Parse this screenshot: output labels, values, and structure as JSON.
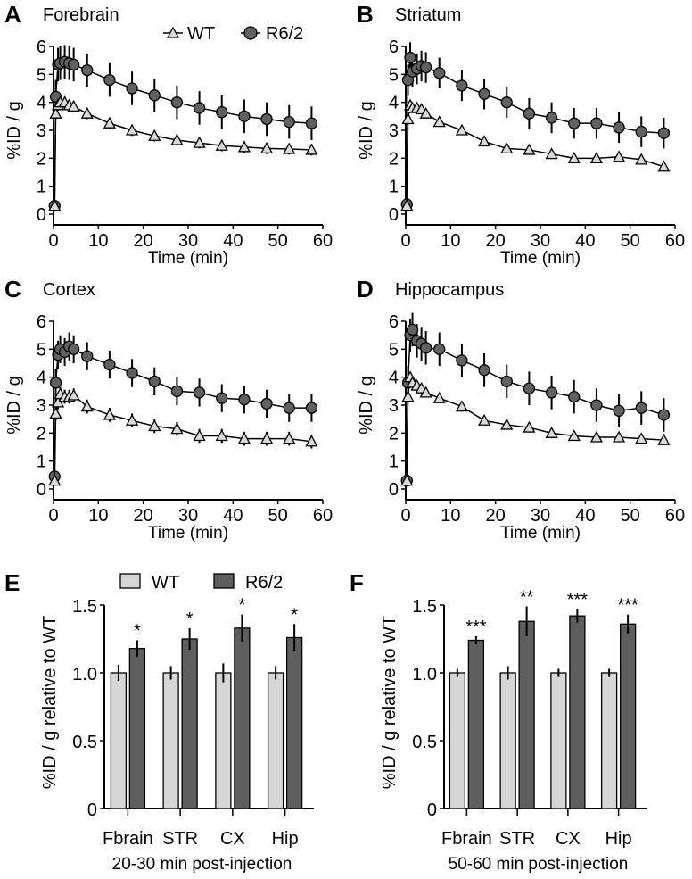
{
  "legend_lines": {
    "wt": "WT",
    "r62": "R6/2"
  },
  "legend_bars": {
    "wt": "WT",
    "r62": "R6/2"
  },
  "colors": {
    "wt": "#d9d9d9",
    "r62": "#606060",
    "bar_wt": "#d6d6d6",
    "bar_r62": "#5e5e5e"
  },
  "chart_data": [
    {
      "type": "line",
      "panel": "A",
      "title": "Forebrain",
      "xlabel": "Time (min)",
      "ylabel": "%ID / g",
      "xlim": [
        0,
        60
      ],
      "ylim": [
        0,
        6
      ],
      "xticks": [
        "0",
        "10",
        "20",
        "30",
        "40",
        "50",
        "60"
      ],
      "yticks": [
        "0",
        "1",
        "2",
        "3",
        "4",
        "5",
        "6"
      ],
      "x": [
        0.25,
        0.5,
        1,
        1.5,
        2.5,
        3.5,
        4.5,
        7.5,
        12.5,
        17.5,
        22.5,
        27.5,
        32.5,
        37.5,
        42.5,
        47.5,
        52.5,
        57.5
      ],
      "series": [
        {
          "name": "WT",
          "values": [
            0.3,
            3.6,
            3.9,
            4.0,
            4.0,
            3.9,
            3.85,
            3.6,
            3.25,
            3.0,
            2.8,
            2.65,
            2.55,
            2.45,
            2.4,
            2.35,
            2.33,
            2.3
          ],
          "error": 0.2
        },
        {
          "name": "R6/2",
          "values": [
            0.3,
            4.2,
            5.35,
            5.4,
            5.45,
            5.4,
            5.35,
            5.15,
            4.8,
            4.5,
            4.25,
            4.0,
            3.8,
            3.65,
            3.5,
            3.4,
            3.3,
            3.25
          ],
          "error": 0.6
        }
      ]
    },
    {
      "type": "line",
      "panel": "B",
      "title": "Striatum",
      "xlabel": "Time (min)",
      "ylabel": "%ID / g",
      "xlim": [
        0,
        60
      ],
      "ylim": [
        0,
        6
      ],
      "xticks": [
        "0",
        "10",
        "20",
        "30",
        "40",
        "50",
        "60"
      ],
      "yticks": [
        "0",
        "1",
        "2",
        "3",
        "4",
        "5",
        "6"
      ],
      "x": [
        0.25,
        0.5,
        1,
        1.5,
        2.5,
        3.5,
        4.5,
        7.5,
        12.5,
        17.5,
        22.5,
        27.5,
        32.5,
        37.5,
        42.5,
        47.5,
        52.5,
        57.5
      ],
      "series": [
        {
          "name": "WT",
          "values": [
            0.3,
            3.4,
            3.9,
            3.8,
            3.8,
            3.75,
            3.6,
            3.3,
            3.0,
            2.6,
            2.35,
            2.3,
            2.15,
            2.0,
            2.0,
            2.05,
            1.95,
            1.7
          ],
          "error": 0.15
        },
        {
          "name": "R6/2",
          "values": [
            0.35,
            4.8,
            5.6,
            5.1,
            5.2,
            5.3,
            5.25,
            5.05,
            4.6,
            4.3,
            4.0,
            3.6,
            3.45,
            3.25,
            3.25,
            3.1,
            2.95,
            2.9
          ],
          "error": 0.55
        }
      ]
    },
    {
      "type": "line",
      "panel": "C",
      "title": "Cortex",
      "xlabel": "Time (min)",
      "ylabel": "%ID / g",
      "xlim": [
        0,
        60
      ],
      "ylim": [
        0,
        6
      ],
      "xticks": [
        "0",
        "10",
        "20",
        "30",
        "40",
        "50",
        "60"
      ],
      "yticks": [
        "0",
        "1",
        "2",
        "3",
        "4",
        "5",
        "6"
      ],
      "x": [
        0.25,
        0.5,
        1,
        1.5,
        2.5,
        3.5,
        4.5,
        7.5,
        12.5,
        17.5,
        22.5,
        27.5,
        32.5,
        37.5,
        42.5,
        47.5,
        52.5,
        57.5
      ],
      "series": [
        {
          "name": "WT",
          "values": [
            0.3,
            2.7,
            3.1,
            3.4,
            3.3,
            3.3,
            3.35,
            2.95,
            2.65,
            2.45,
            2.25,
            2.15,
            1.9,
            1.9,
            1.8,
            1.8,
            1.8,
            1.7
          ],
          "error": 0.25
        },
        {
          "name": "R6/2",
          "values": [
            0.45,
            3.8,
            4.8,
            5.0,
            4.9,
            5.1,
            5.0,
            4.75,
            4.45,
            4.15,
            3.85,
            3.5,
            3.45,
            3.25,
            3.2,
            3.05,
            2.9,
            2.9
          ],
          "error": 0.5
        }
      ]
    },
    {
      "type": "line",
      "panel": "D",
      "title": "Hippocampus",
      "xlabel": "Time (min)",
      "ylabel": "%ID / g",
      "xlim": [
        0,
        60
      ],
      "ylim": [
        0,
        6
      ],
      "xticks": [
        "0",
        "10",
        "20",
        "30",
        "40",
        "50",
        "60"
      ],
      "yticks": [
        "0",
        "1",
        "2",
        "3",
        "4",
        "5",
        "6"
      ],
      "x": [
        0.25,
        0.5,
        1,
        1.5,
        2.5,
        3.5,
        4.5,
        7.5,
        12.5,
        17.5,
        22.5,
        27.5,
        32.5,
        37.5,
        42.5,
        47.5,
        52.5,
        57.5
      ],
      "series": [
        {
          "name": "WT",
          "values": [
            0.3,
            3.3,
            4.0,
            3.8,
            3.7,
            3.6,
            3.45,
            3.25,
            2.95,
            2.45,
            2.3,
            2.2,
            2.0,
            1.9,
            1.85,
            1.85,
            1.8,
            1.75
          ],
          "error": 0.15
        },
        {
          "name": "R6/2",
          "values": [
            0.3,
            3.8,
            5.5,
            5.7,
            5.3,
            5.2,
            5.05,
            5.0,
            4.6,
            4.25,
            3.85,
            3.6,
            3.45,
            3.3,
            3.0,
            2.8,
            2.9,
            2.65
          ],
          "error": 0.6
        }
      ]
    },
    {
      "type": "bar",
      "panel": "E",
      "xlabel": "20-30 min post-injection",
      "ylabel": "%ID / g relative to WT",
      "ylim": [
        0,
        1.5
      ],
      "yticks": [
        "0",
        "0.5",
        "1.0",
        "1.5"
      ],
      "categories": [
        "Fbrain",
        "STR",
        "CX",
        "Hip"
      ],
      "series": [
        {
          "name": "WT",
          "values": [
            1.0,
            1.0,
            1.0,
            1.0
          ],
          "errors": [
            0.06,
            0.05,
            0.07,
            0.05
          ]
        },
        {
          "name": "R6/2",
          "values": [
            1.18,
            1.25,
            1.33,
            1.26
          ],
          "errors": [
            0.06,
            0.08,
            0.1,
            0.1
          ]
        }
      ],
      "annotations": [
        "*",
        "*",
        "*",
        "*"
      ]
    },
    {
      "type": "bar",
      "panel": "F",
      "xlabel": "50-60 min post-injection",
      "ylabel": "%ID / g relative to WT",
      "ylim": [
        0,
        1.5
      ],
      "yticks": [
        "0",
        "0.5",
        "1.0",
        "1.5"
      ],
      "categories": [
        "Fbrain",
        "STR",
        "CX",
        "Hip"
      ],
      "series": [
        {
          "name": "WT",
          "values": [
            1.0,
            1.0,
            1.0,
            1.0
          ],
          "errors": [
            0.03,
            0.05,
            0.03,
            0.03
          ]
        },
        {
          "name": "R6/2",
          "values": [
            1.24,
            1.38,
            1.42,
            1.36
          ],
          "errors": [
            0.03,
            0.11,
            0.05,
            0.07
          ]
        }
      ],
      "annotations": [
        "***",
        "**",
        "***",
        "***"
      ]
    }
  ]
}
